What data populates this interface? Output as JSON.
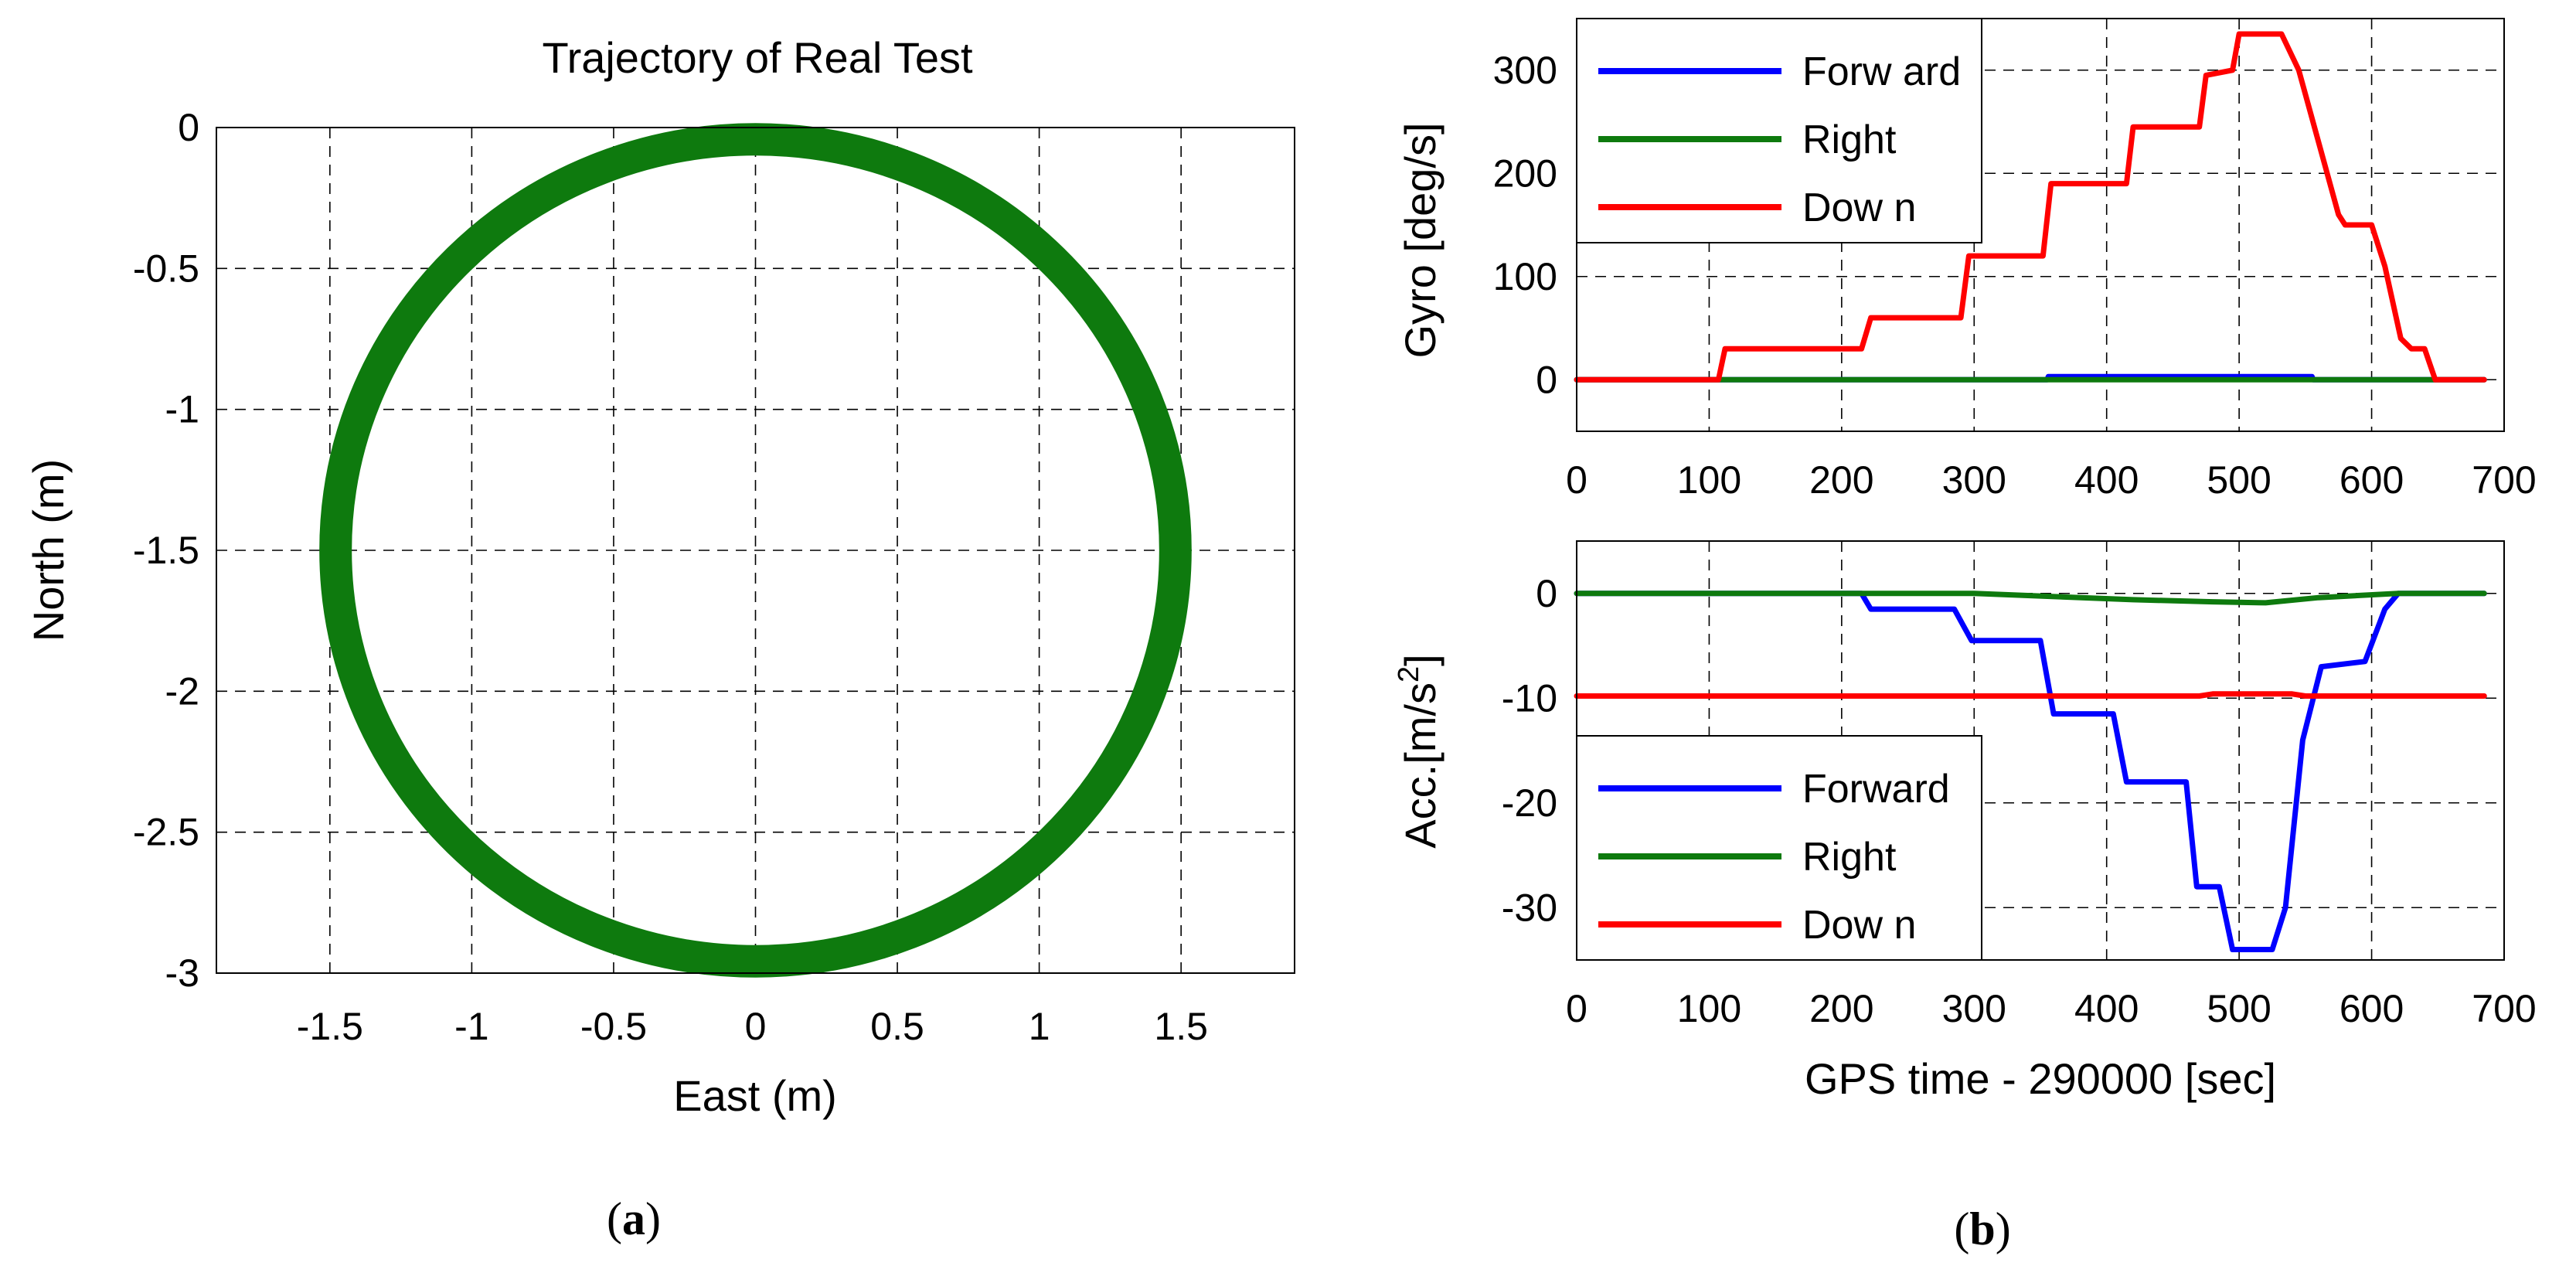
{
  "figure": {
    "panel_a_label": "a",
    "panel_b_label": "b"
  },
  "chart_data": [
    {
      "type": "line",
      "title": "Trajectory of Real Test",
      "xlabel": "East (m)",
      "ylabel": "North (m)",
      "xlim": [
        -1.9,
        1.9
      ],
      "ylim": [
        -3,
        0
      ],
      "xticks": [
        -1.5,
        -1,
        -0.5,
        0,
        0.5,
        1,
        1.5
      ],
      "xtick_labels": [
        "-1.5",
        "-1",
        "-0.5",
        "0",
        "0.5",
        "1",
        "1.5"
      ],
      "yticks": [
        0,
        -0.5,
        -1,
        -1.5,
        -2,
        -2.5,
        -3
      ],
      "ytick_labels": [
        "0",
        "-0.5",
        "-1",
        "-1.5",
        "-2",
        "-2.5",
        "-3"
      ],
      "grid": true,
      "series": [
        {
          "color": "#0e7a0e",
          "shape": "circle",
          "center": [
            0,
            -1.5
          ],
          "radius_x": 1.48,
          "radius_y": 1.48
        }
      ]
    },
    {
      "type": "line",
      "title": "",
      "xlabel": "",
      "ylabel": "Gyro [deg/s]",
      "xlim": [
        0,
        700
      ],
      "ylim": [
        -50,
        350
      ],
      "xticks": [
        0,
        100,
        200,
        300,
        400,
        500,
        600,
        700
      ],
      "xtick_labels": [
        "0",
        "100",
        "200",
        "300",
        "400",
        "500",
        "600",
        "700"
      ],
      "yticks": [
        0,
        100,
        200,
        300
      ],
      "ytick_labels": [
        "0",
        "100",
        "200",
        "300"
      ],
      "grid": true,
      "legend": {
        "position": "top-left",
        "entries": [
          "Forw ard",
          "Right",
          "Dow n"
        ]
      },
      "series": [
        {
          "name": "Forw ard",
          "color": "#0000ff",
          "x": [
            0,
            355,
            356,
            555,
            556,
            685
          ],
          "y": [
            0,
            0,
            3,
            3,
            0,
            0
          ]
        },
        {
          "name": "Right",
          "color": "#0e7a0e",
          "x": [
            0,
            640,
            645,
            685
          ],
          "y": [
            0,
            0,
            0,
            0
          ]
        },
        {
          "name": "Dow n",
          "color": "#ff0000",
          "x": [
            0,
            107,
            112,
            140,
            215,
            222,
            290,
            296,
            352,
            358,
            415,
            420,
            470,
            475,
            495,
            500,
            532,
            545,
            575,
            580,
            600,
            610,
            622,
            630,
            640,
            648,
            685
          ],
          "y": [
            0,
            0,
            30,
            30,
            30,
            60,
            60,
            120,
            120,
            190,
            190,
            245,
            245,
            295,
            300,
            335,
            335,
            300,
            160,
            150,
            150,
            110,
            40,
            30,
            30,
            0,
            0
          ]
        }
      ]
    },
    {
      "type": "line",
      "title": "",
      "xlabel": "GPS time - 290000 [sec]",
      "ylabel": "Acc.[m/s2]",
      "xlim": [
        0,
        700
      ],
      "ylim": [
        -35,
        5
      ],
      "xticks": [
        0,
        100,
        200,
        300,
        400,
        500,
        600,
        700
      ],
      "xtick_labels": [
        "0",
        "100",
        "200",
        "300",
        "400",
        "500",
        "600",
        "700"
      ],
      "yticks": [
        0,
        -10,
        -20,
        -30
      ],
      "ytick_labels": [
        "0",
        "-10",
        "-20",
        "-30"
      ],
      "grid": true,
      "legend": {
        "position": "bottom-left",
        "entries": [
          "Forward",
          "Right",
          "Dow n"
        ]
      },
      "series": [
        {
          "name": "Forward",
          "color": "#0000ff",
          "x": [
            0,
            215,
            222,
            285,
            298,
            350,
            360,
            405,
            415,
            460,
            468,
            485,
            495,
            525,
            535,
            548,
            562,
            595,
            610,
            620,
            685
          ],
          "y": [
            0,
            0,
            -1.5,
            -1.5,
            -4.5,
            -4.5,
            -11.5,
            -11.5,
            -18,
            -18,
            -28,
            -28,
            -34,
            -34,
            -30,
            -14,
            -7,
            -6.5,
            -1.5,
            0,
            0
          ]
        },
        {
          "name": "Right",
          "color": "#0e7a0e",
          "x": [
            0,
            210,
            300,
            420,
            480,
            520,
            560,
            620,
            685
          ],
          "y": [
            0,
            0,
            0,
            -0.6,
            -0.8,
            -0.9,
            -0.4,
            0,
            0
          ]
        },
        {
          "name": "Dow n",
          "color": "#ff0000",
          "x": [
            0,
            470,
            480,
            540,
            550,
            685
          ],
          "y": [
            -9.8,
            -9.8,
            -9.6,
            -9.6,
            -9.8,
            -9.8
          ]
        }
      ]
    }
  ]
}
